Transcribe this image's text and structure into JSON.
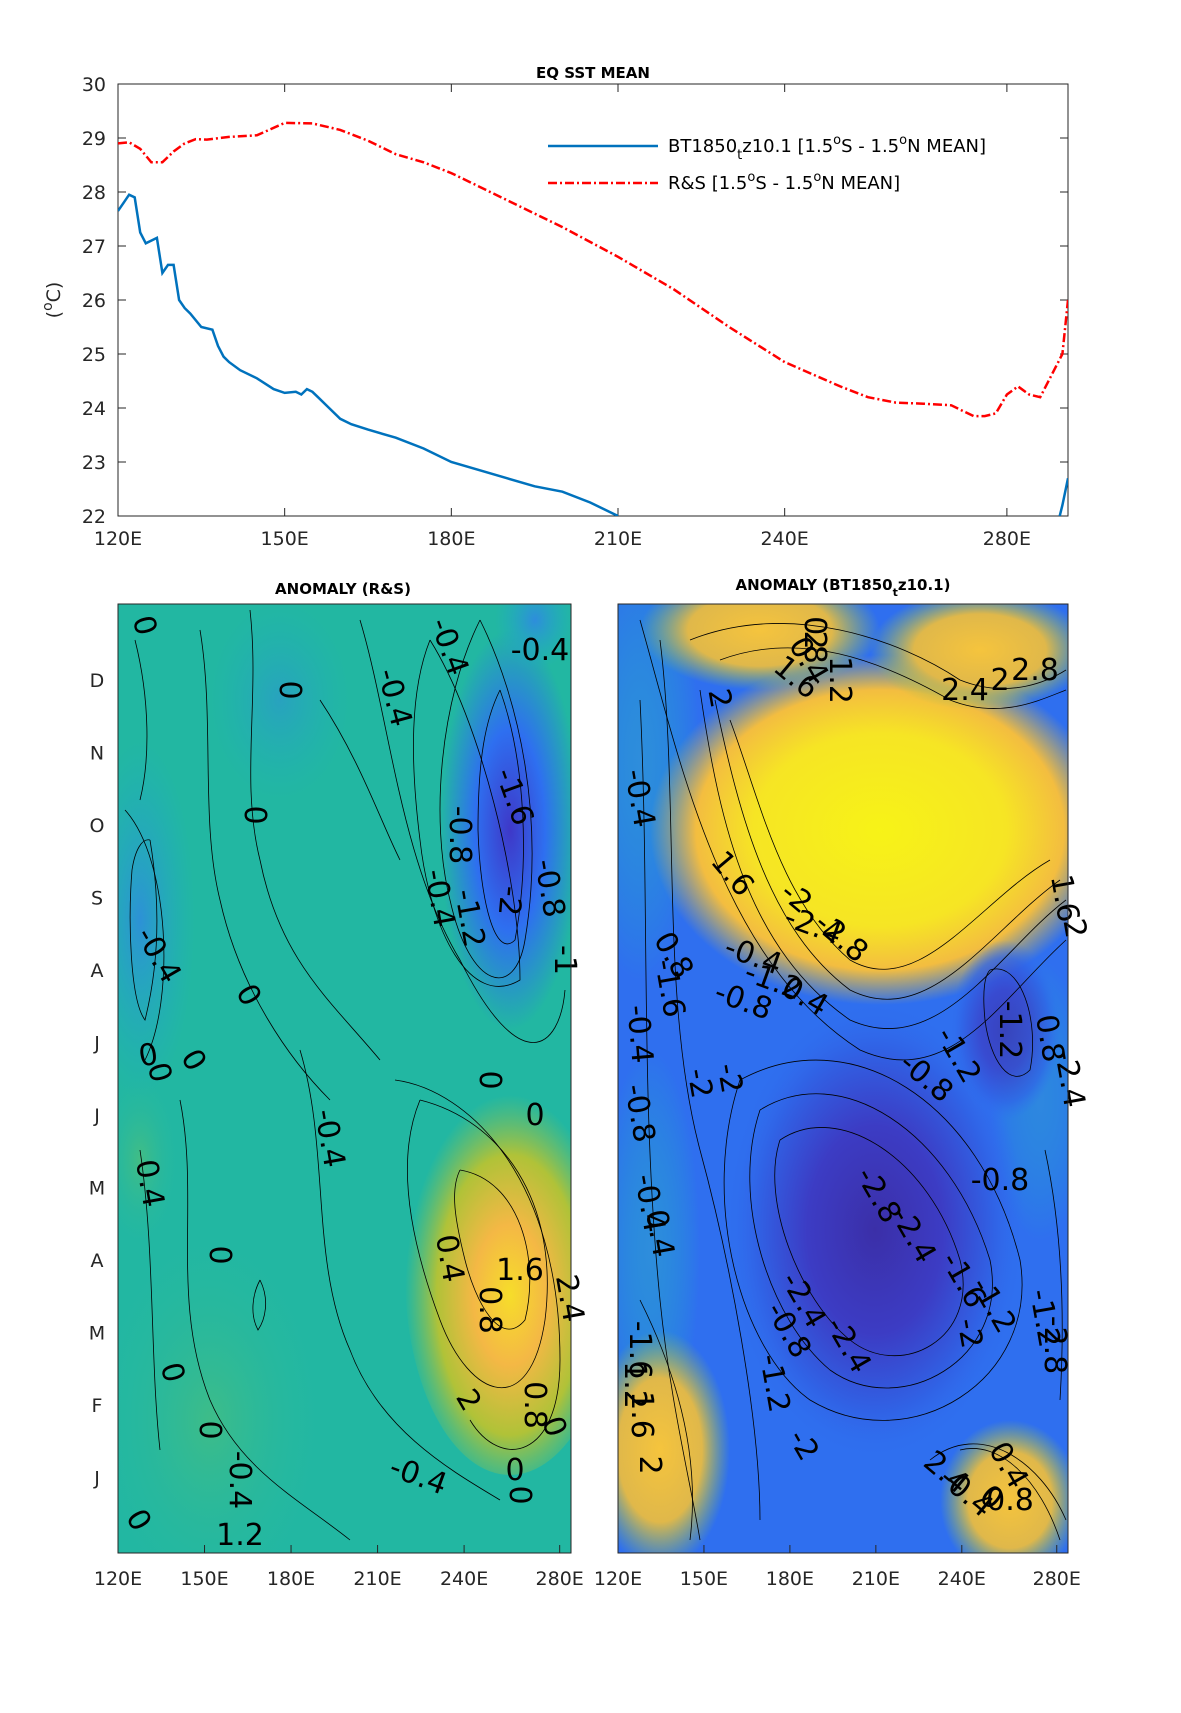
{
  "chart_data": [
    {
      "type": "line",
      "title": "EQ SST MEAN",
      "ylabel": "(oC)",
      "xlabel": "",
      "xlim": [
        120,
        291
      ],
      "ylim": [
        22,
        30
      ],
      "xticks": [
        120,
        150,
        180,
        210,
        240,
        280
      ],
      "xtick_labels": [
        "120E",
        "150E",
        "180E",
        "210E",
        "240E",
        "280E"
      ],
      "yticks": [
        22,
        23,
        24,
        25,
        26,
        27,
        28,
        29,
        30
      ],
      "grid": false,
      "legend_position": "top-right",
      "series": [
        {
          "name": "BT1850tz10.1 [1.5oS - 1.5oN MEAN]",
          "color": "#0072BD",
          "line_style": "solid",
          "x": [
            120,
            121,
            122,
            123,
            124,
            125,
            126,
            127,
            128,
            129,
            130,
            131,
            132,
            133,
            135,
            137,
            138,
            139,
            140,
            142,
            145,
            148,
            150,
            152,
            153,
            154,
            155,
            156,
            158,
            160,
            162,
            165,
            170,
            175,
            180,
            185,
            190,
            195,
            200,
            205,
            210
          ],
          "values": [
            27.65,
            27.8,
            27.95,
            27.9,
            27.25,
            27.05,
            27.1,
            27.15,
            26.5,
            26.65,
            26.65,
            26.0,
            25.85,
            25.75,
            25.5,
            25.45,
            25.15,
            24.95,
            24.85,
            24.7,
            24.55,
            24.35,
            24.28,
            24.3,
            24.25,
            24.35,
            24.3,
            24.2,
            24.0,
            23.8,
            23.7,
            23.6,
            23.45,
            23.25,
            23.0,
            22.85,
            22.7,
            22.55,
            22.45,
            22.25,
            22.0
          ]
        },
        {
          "name": "R&S [1.5oS - 1.5oN MEAN]",
          "color": "#FF0000",
          "line_style": "dash-dot",
          "x": [
            120,
            122,
            124,
            126,
            128,
            130,
            132,
            134,
            136,
            140,
            145,
            150,
            155,
            160,
            165,
            170,
            175,
            180,
            190,
            200,
            210,
            220,
            230,
            240,
            250,
            255,
            260,
            265,
            270,
            272,
            274,
            276,
            278,
            280,
            282,
            284,
            286,
            288,
            290,
            291
          ],
          "values": [
            28.9,
            28.92,
            28.8,
            28.55,
            28.55,
            28.75,
            28.9,
            28.98,
            28.97,
            29.02,
            29.05,
            29.28,
            29.27,
            29.15,
            28.95,
            28.7,
            28.55,
            28.35,
            27.85,
            27.35,
            26.8,
            26.2,
            25.5,
            24.85,
            24.4,
            24.2,
            24.1,
            24.08,
            24.05,
            23.95,
            23.85,
            23.85,
            23.9,
            24.25,
            24.4,
            24.25,
            24.2,
            24.6,
            25.0,
            26.0
          ]
        },
        {
          "name": "BT1850tz10.1 [1.5oS - 1.5oN MEAN]",
          "color": "#0072BD",
          "line_style": "solid",
          "x": [
            289.5,
            290,
            290.5,
            291
          ],
          "values": [
            22.0,
            22.2,
            22.45,
            22.7
          ]
        }
      ]
    },
    {
      "type": "heatmap",
      "title": "ANOMALY (R&S)",
      "xlim": [
        120,
        290
      ],
      "xtick_labels": [
        "120E",
        "150E",
        "180E",
        "210E",
        "240E",
        "280E"
      ],
      "ytick_labels": [
        "D",
        "N",
        "O",
        "S",
        "A",
        "J",
        "J",
        "M",
        "A",
        "M",
        "F",
        "J"
      ],
      "colormap": "parula",
      "contour_labels": [
        "0",
        "-0.4",
        "0",
        "-0.4",
        "0",
        "-0.4",
        "-0.4",
        "0",
        "-1.6",
        "-0.8",
        "-1.2",
        "-2",
        "-0.8",
        "-1",
        "-0.4",
        "0",
        "0",
        "0",
        "0",
        "0",
        "-0.4",
        "0.4",
        "0.4",
        "1.6",
        "2.4",
        "0.8",
        "2",
        "0.8",
        "0",
        "-0.4",
        "0",
        "0",
        "0",
        "-0.4",
        "0",
        "0",
        "1.2",
        "0"
      ]
    },
    {
      "type": "heatmap",
      "title": "ANOMALY (BT1850tz10.1)",
      "xlim": [
        120,
        290
      ],
      "xtick_labels": [
        "120E",
        "150E",
        "180E",
        "210E",
        "240E",
        "280E"
      ],
      "colormap": "parula",
      "contour_labels": [
        "0.8",
        "0.4",
        "1.2",
        "1.6",
        "2",
        "2.4",
        "2.8",
        "2",
        "-0.4",
        "1.6",
        "-2",
        "-2.4",
        "-2.8",
        "1.6",
        "2",
        "0.8",
        "-0.4",
        "-1.2",
        "-1.6",
        "-0.8",
        "-0.4",
        "-1.2",
        "-2",
        "-2.4",
        "0.4",
        "0.8",
        "-2",
        "-1.2",
        "-0.8",
        "-0.8",
        "-2.8",
        "-2.4",
        "-0.8",
        "-0.4",
        "0.4",
        "-1.6",
        "-1.2",
        "-2.4",
        "-2",
        "-1.2",
        "-0.8",
        "-2.4",
        "-2.8",
        "-1.2",
        "-2",
        "-1.6",
        "1.2",
        "1.6",
        "2",
        "2.4",
        "-0.4",
        "0",
        "0.4",
        "0.8",
        "2"
      ]
    }
  ]
}
